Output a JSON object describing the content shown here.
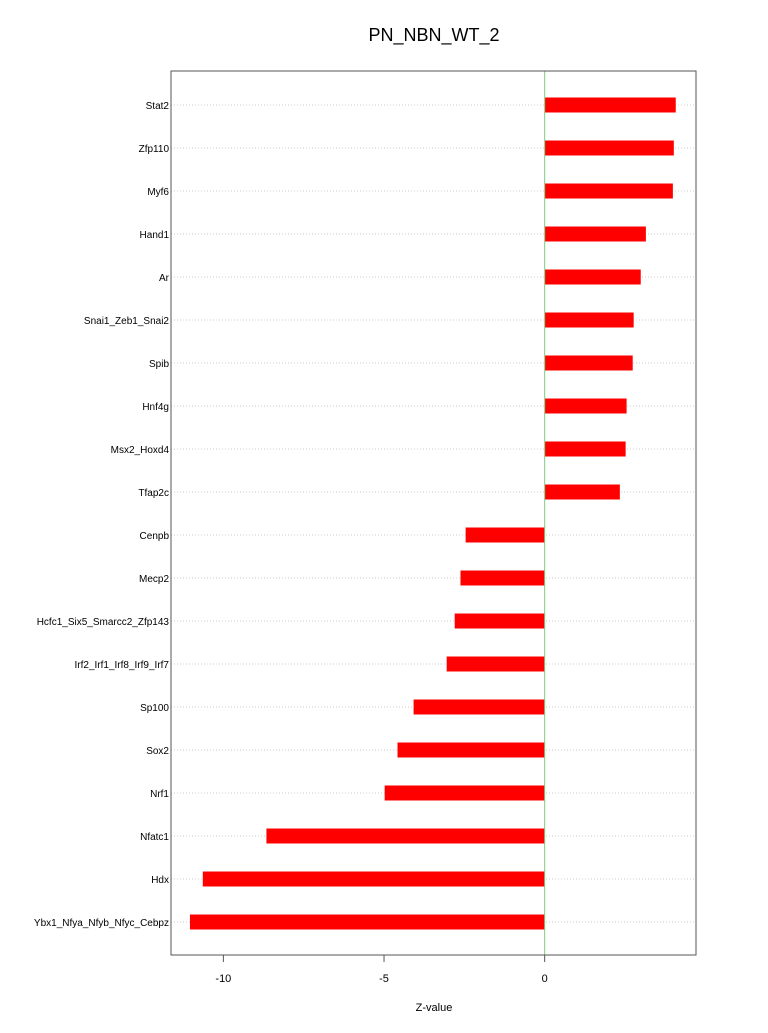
{
  "chart_data": {
    "type": "bar",
    "orientation": "horizontal",
    "title": "PN_NBN_WT_2",
    "xlabel": "Z-value",
    "ylabel": "",
    "xlim": [
      -11.63,
      4.71
    ],
    "xticks": [
      -10,
      -5,
      0
    ],
    "bar_color": "#ff0000",
    "zero_line_color": "#7fcc7f",
    "grid": "dotted horizontal",
    "categories": [
      "Stat2",
      "Zfp110",
      "Myf6",
      "Hand1",
      "Ar",
      "Snai1_Zeb1_Snai2",
      "Spib",
      "Hnf4g",
      "Msx2_Hoxd4",
      "Tfap2c",
      "Cenpb",
      "Mecp2",
      "Hcfc1_Six5_Smarcc2_Zfp143",
      "Irf2_Irf1_Irf8_Irf9_Irf7",
      "Sp100",
      "Sox2",
      "Nrf1",
      "Nfatc1",
      "Hdx",
      "Ybx1_Nfya_Nfyb_Nfyc_Cebpz"
    ],
    "values": [
      4.08,
      4.02,
      3.99,
      3.15,
      2.99,
      2.77,
      2.74,
      2.55,
      2.52,
      2.34,
      -2.46,
      -2.62,
      -2.8,
      -3.05,
      -4.08,
      -4.58,
      -4.98,
      -8.66,
      -10.64,
      -11.04
    ]
  }
}
